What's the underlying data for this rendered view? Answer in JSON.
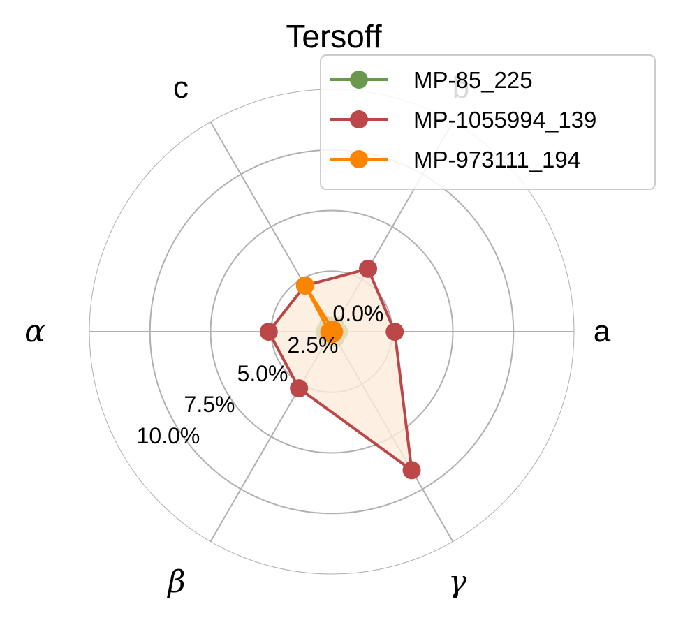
{
  "chart_data": {
    "type": "radar",
    "title": "Tersoff",
    "categories": [
      "a",
      "b",
      "c",
      "α",
      "β",
      "γ"
    ],
    "radial_ticks": [
      "0.0%",
      "2.5%",
      "5.0%",
      "7.5%",
      "10.0%"
    ],
    "rlim": [
      0,
      10
    ],
    "grid": true,
    "legend_position": "top-right",
    "series": [
      {
        "name": "MP-85_225",
        "color": "#6a994e",
        "values": [
          0.3,
          0.3,
          0.3,
          0.3,
          0.3,
          0.3
        ]
      },
      {
        "name": "MP-1055994_139",
        "color": "#bc4749",
        "values": [
          2.6,
          3.0,
          2.2,
          2.6,
          2.7,
          6.6
        ],
        "fill": "#fdebd9"
      },
      {
        "name": "MP-973111_194",
        "color": "#fb8500",
        "values": [
          0.1,
          0.1,
          2.2,
          0.1,
          0.1,
          0.1
        ]
      }
    ]
  }
}
